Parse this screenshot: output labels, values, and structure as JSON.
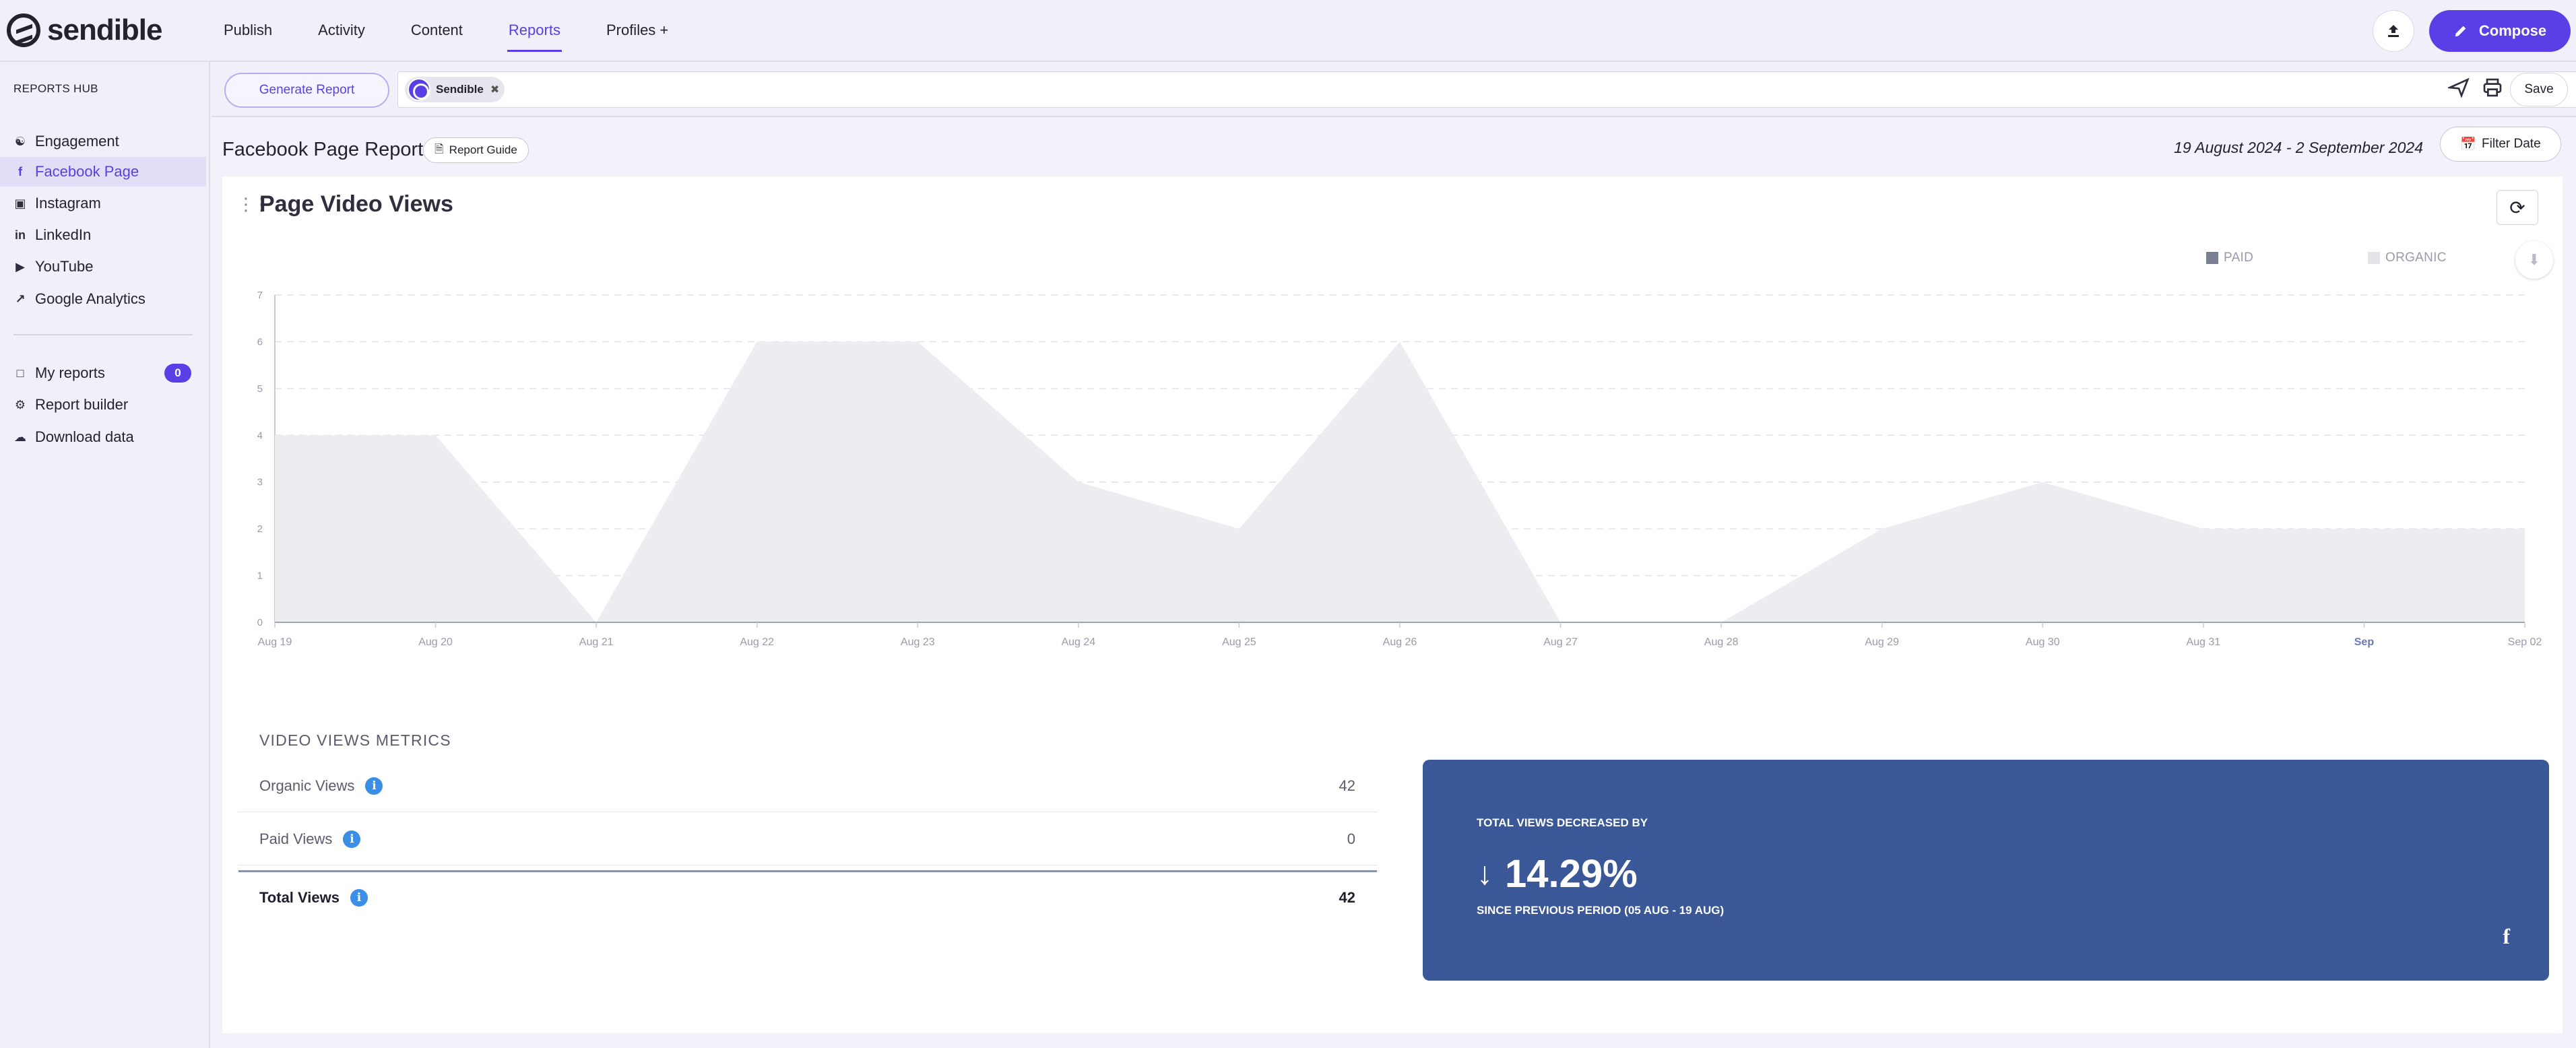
{
  "app": {
    "name": "sendible"
  },
  "nav": {
    "items": [
      {
        "label": "Publish"
      },
      {
        "label": "Activity"
      },
      {
        "label": "Content"
      },
      {
        "label": "Reports"
      },
      {
        "label": "Profiles +"
      }
    ],
    "compose_label": "Compose"
  },
  "sidebar": {
    "hub_title": "REPORTS HUB",
    "items": [
      {
        "label": "Engagement",
        "icon": "engagement-icon"
      },
      {
        "label": "Facebook Page",
        "icon": "facebook-icon"
      },
      {
        "label": "Instagram",
        "icon": "instagram-icon"
      },
      {
        "label": "LinkedIn",
        "icon": "linkedin-icon"
      },
      {
        "label": "YouTube",
        "icon": "youtube-icon"
      },
      {
        "label": "Google Analytics",
        "icon": "analytics-icon"
      }
    ],
    "secondary": [
      {
        "label": "My reports",
        "icon": "folder-icon",
        "badge": "0"
      },
      {
        "label": "Report builder",
        "icon": "wrench-icon"
      },
      {
        "label": "Download data",
        "icon": "cloud-download-icon"
      }
    ]
  },
  "filterbar": {
    "generate_label": "Generate Report",
    "profile_chip": "Sendible",
    "save_label": "Save"
  },
  "report": {
    "title": "Facebook Page Report",
    "guide_label": "Report Guide",
    "date_range": "19 August 2024 - 2 September 2024",
    "filter_date_label": "Filter Date"
  },
  "panel": {
    "title": "Page Video Views",
    "legend": [
      {
        "label": "PAID",
        "color": "#7b7f94"
      },
      {
        "label": "ORGANIC",
        "color": "#e3e3ea"
      }
    ]
  },
  "chart_data": {
    "type": "area",
    "categories": [
      "Aug 19",
      "Aug 20",
      "Aug 21",
      "Aug 22",
      "Aug 23",
      "Aug 24",
      "Aug 25",
      "Aug 26",
      "Aug 27",
      "Aug 28",
      "Aug 29",
      "Aug 30",
      "Aug 31",
      "Sep",
      "Sep 02"
    ],
    "series": [
      {
        "name": "ORGANIC",
        "values": [
          4,
          4,
          0,
          6,
          6,
          3,
          2,
          6,
          0,
          0,
          2,
          3,
          2,
          2,
          2
        ]
      },
      {
        "name": "PAID",
        "values": [
          0,
          0,
          0,
          0,
          0,
          0,
          0,
          0,
          0,
          0,
          0,
          0,
          0,
          0,
          0
        ]
      }
    ],
    "yticks": [
      "0",
      "1",
      "2",
      "3",
      "4",
      "5",
      "6",
      "7"
    ],
    "ylim": [
      0,
      7
    ],
    "grid": true,
    "legend_position": "top-right"
  },
  "metrics": {
    "title": "VIDEO VIEWS METRICS",
    "rows": [
      {
        "label": "Organic Views",
        "value": "42"
      },
      {
        "label": "Paid Views",
        "value": "0"
      },
      {
        "label": "Total Views",
        "value": "42"
      }
    ]
  },
  "stat": {
    "label": "TOTAL VIEWS DECREASED BY",
    "value": "14.29%",
    "sub": "SINCE PREVIOUS PERIOD (05 AUG - 19 AUG)",
    "color": "#3a5798"
  }
}
